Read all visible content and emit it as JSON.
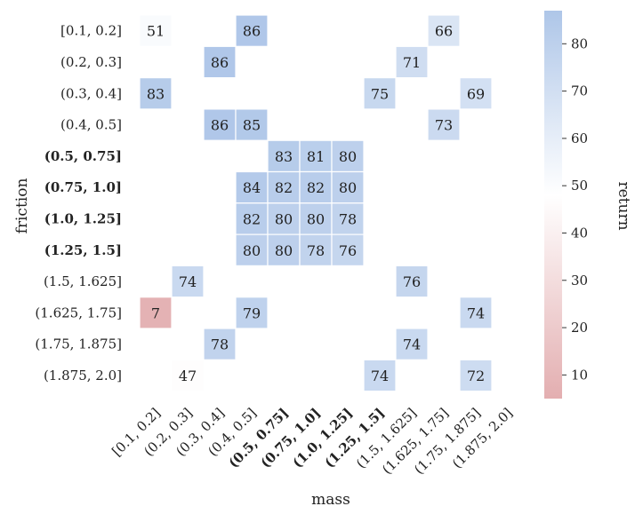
{
  "chart_data": {
    "type": "heatmap",
    "xlabel": "mass",
    "ylabel": "friction",
    "x_categories": [
      "[0.1, 0.2]",
      "(0.2, 0.3]",
      "(0.3, 0.4]",
      "(0.4, 0.5]",
      "(0.5, 0.75]",
      "(0.75, 1.0]",
      "(1.0, 1.25]",
      "(1.25, 1.5]",
      "(1.5, 1.625]",
      "(1.625, 1.75]",
      "(1.75, 1.875]",
      "(1.875, 2.0]"
    ],
    "y_categories": [
      "[0.1, 0.2]",
      "(0.2, 0.3]",
      "(0.3, 0.4]",
      "(0.4, 0.5]",
      "(0.5, 0.75]",
      "(0.75, 1.0]",
      "(1.0, 1.25]",
      "(1.25, 1.5]",
      "(1.5, 1.625]",
      "(1.625, 1.75]",
      "(1.75, 1.875]",
      "(1.875, 2.0]"
    ],
    "bold_categories": [
      "(0.5, 0.75]",
      "(0.75, 1.0]",
      "(1.0, 1.25]",
      "(1.25, 1.5]"
    ],
    "values": [
      [
        51,
        null,
        null,
        86,
        null,
        null,
        null,
        null,
        null,
        66,
        null,
        null
      ],
      [
        null,
        null,
        86,
        null,
        null,
        null,
        null,
        null,
        71,
        null,
        null,
        null
      ],
      [
        83,
        null,
        null,
        null,
        null,
        null,
        null,
        75,
        null,
        null,
        69,
        null
      ],
      [
        null,
        null,
        86,
        85,
        null,
        null,
        null,
        null,
        null,
        73,
        null,
        null
      ],
      [
        null,
        null,
        null,
        null,
        83,
        81,
        80,
        null,
        null,
        null,
        null,
        null
      ],
      [
        null,
        null,
        null,
        84,
        82,
        82,
        80,
        null,
        null,
        null,
        null,
        null
      ],
      [
        null,
        null,
        null,
        82,
        80,
        80,
        78,
        null,
        null,
        null,
        null,
        null
      ],
      [
        null,
        null,
        null,
        80,
        80,
        78,
        76,
        null,
        null,
        null,
        null,
        null
      ],
      [
        null,
        74,
        null,
        null,
        null,
        null,
        null,
        null,
        76,
        null,
        null,
        null
      ],
      [
        7,
        null,
        null,
        79,
        null,
        null,
        null,
        null,
        null,
        null,
        74,
        null
      ],
      [
        null,
        null,
        78,
        null,
        null,
        null,
        null,
        null,
        74,
        null,
        null,
        null
      ],
      [
        null,
        47,
        null,
        null,
        null,
        null,
        null,
        74,
        null,
        null,
        72,
        null
      ]
    ],
    "colorbar": {
      "label": "return",
      "vmin": 5,
      "vmax": 87,
      "center": 48,
      "ticks": [
        10,
        20,
        30,
        40,
        50,
        60,
        70,
        80
      ],
      "low_color": "#e3aeb0",
      "mid_color": "#ffffff",
      "high_color": "#aec6e8"
    }
  }
}
